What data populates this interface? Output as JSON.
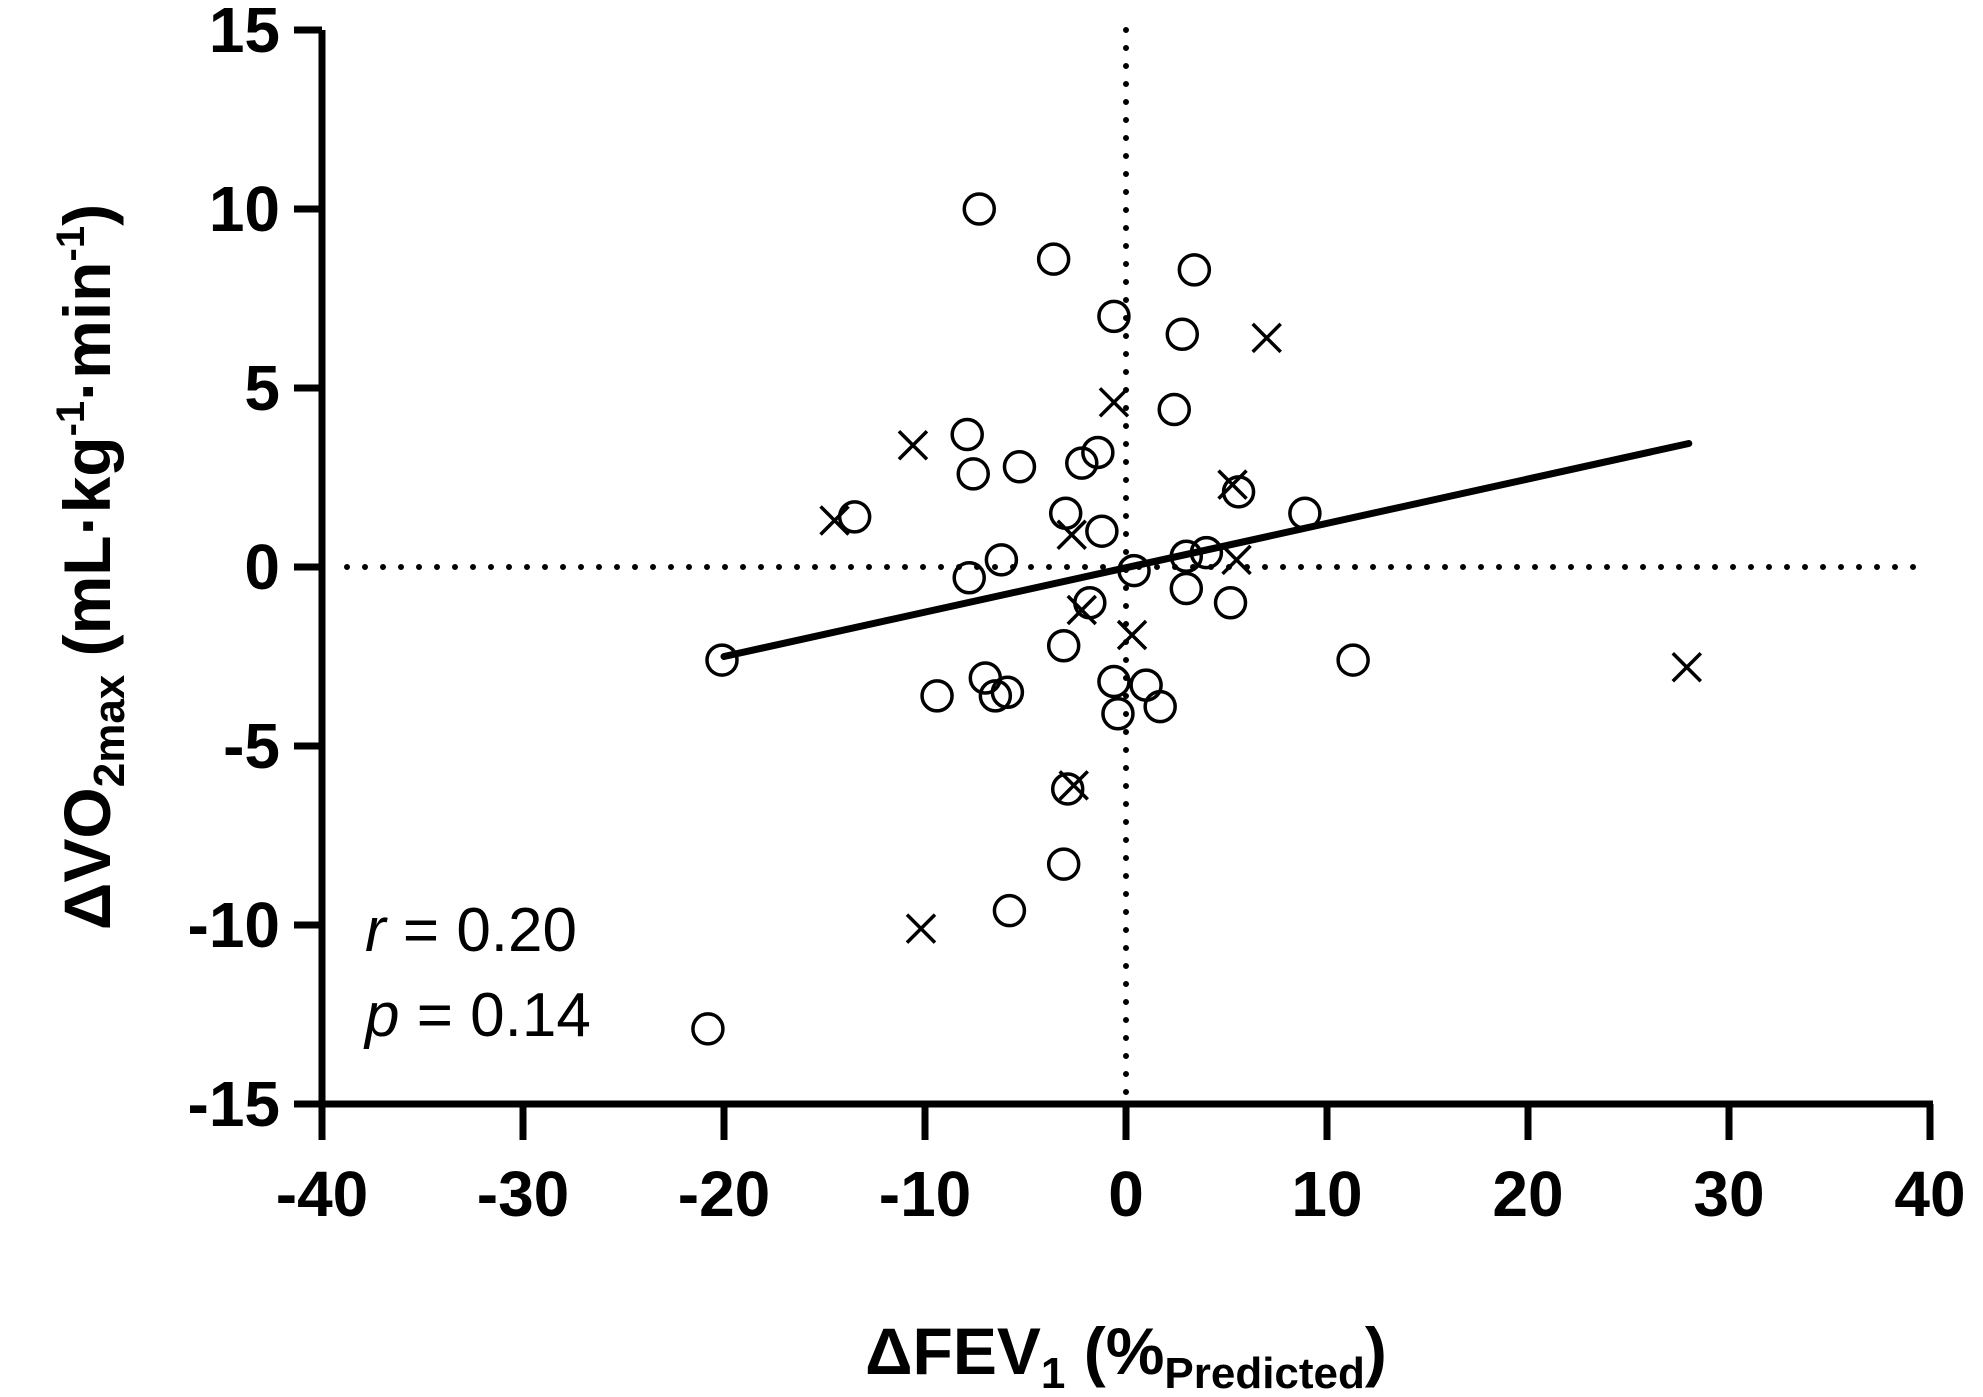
{
  "chart_data": {
    "type": "scatter",
    "title": "",
    "xlabel": {
      "prefix": "ΔFEV",
      "sub": "1",
      "open": " (%",
      "unit_sub": "Predicted",
      "close": ")"
    },
    "ylabel": {
      "prefix": "ΔVO",
      "sub": "2max",
      "open": " (mL·kg",
      "sup1": "-1",
      "mid": "·min",
      "sup2": "-1",
      "close": ")"
    },
    "xlim": [
      -40,
      40
    ],
    "ylim": [
      -15,
      15
    ],
    "xticks": [
      -40,
      -30,
      -20,
      -10,
      0,
      10,
      20,
      30,
      40
    ],
    "yticks": [
      -15,
      -10,
      -5,
      0,
      5,
      10,
      15
    ],
    "xtick_labels": [
      "-40",
      "-30",
      "-20",
      "-10",
      "0",
      "10",
      "20",
      "30",
      "40"
    ],
    "ytick_labels": [
      "-15",
      "-10",
      "-5",
      "0",
      "5",
      "10",
      "15"
    ],
    "reference_lines": {
      "x": 0,
      "y": 0,
      "style": "dotted"
    },
    "series": [
      {
        "name": "circles",
        "marker": "circle",
        "points": [
          [
            -7.3,
            10.0
          ],
          [
            -3.6,
            8.6
          ],
          [
            3.4,
            8.3
          ],
          [
            -0.6,
            7.0
          ],
          [
            2.8,
            6.5
          ],
          [
            2.4,
            4.4
          ],
          [
            -7.9,
            3.7
          ],
          [
            -1.4,
            3.2
          ],
          [
            -2.2,
            2.9
          ],
          [
            -5.3,
            2.8
          ],
          [
            -7.6,
            2.6
          ],
          [
            5.6,
            2.1
          ],
          [
            8.9,
            1.5
          ],
          [
            -3.0,
            1.5
          ],
          [
            -13.5,
            1.4
          ],
          [
            -1.2,
            1.0
          ],
          [
            3.0,
            0.3
          ],
          [
            4.0,
            0.4
          ],
          [
            -6.2,
            0.2
          ],
          [
            0.4,
            -0.1
          ],
          [
            -7.8,
            -0.3
          ],
          [
            3.0,
            -0.6
          ],
          [
            -1.8,
            -1.0
          ],
          [
            5.2,
            -1.0
          ],
          [
            -3.1,
            -2.2
          ],
          [
            11.3,
            -2.6
          ],
          [
            -20.1,
            -2.6
          ],
          [
            -7.0,
            -3.1
          ],
          [
            -0.6,
            -3.2
          ],
          [
            1.0,
            -3.3
          ],
          [
            -9.4,
            -3.6
          ],
          [
            -5.9,
            -3.5
          ],
          [
            -6.5,
            -3.6
          ],
          [
            1.7,
            -3.9
          ],
          [
            -0.4,
            -4.1
          ],
          [
            -2.9,
            -6.2
          ],
          [
            -3.1,
            -8.3
          ],
          [
            -5.8,
            -9.6
          ],
          [
            -20.8,
            -12.9
          ]
        ]
      },
      {
        "name": "crosses",
        "marker": "x",
        "points": [
          [
            7.0,
            6.4
          ],
          [
            -0.6,
            4.6
          ],
          [
            -10.6,
            3.4
          ],
          [
            5.3,
            2.3
          ],
          [
            -14.5,
            1.3
          ],
          [
            -2.7,
            0.9
          ],
          [
            5.5,
            0.2
          ],
          [
            -2.2,
            -1.2
          ],
          [
            0.3,
            -1.9
          ],
          [
            -2.6,
            -6.1
          ],
          [
            -10.2,
            -10.1
          ],
          [
            27.9,
            -2.8
          ]
        ]
      }
    ],
    "fit_line": {
      "x": [
        -20,
        28
      ],
      "y": [
        -2.5,
        3.45
      ]
    },
    "annotations": [
      {
        "var": "r",
        "rest": " = 0.20"
      },
      {
        "var": "p",
        "rest": " = 0.14"
      }
    ]
  }
}
